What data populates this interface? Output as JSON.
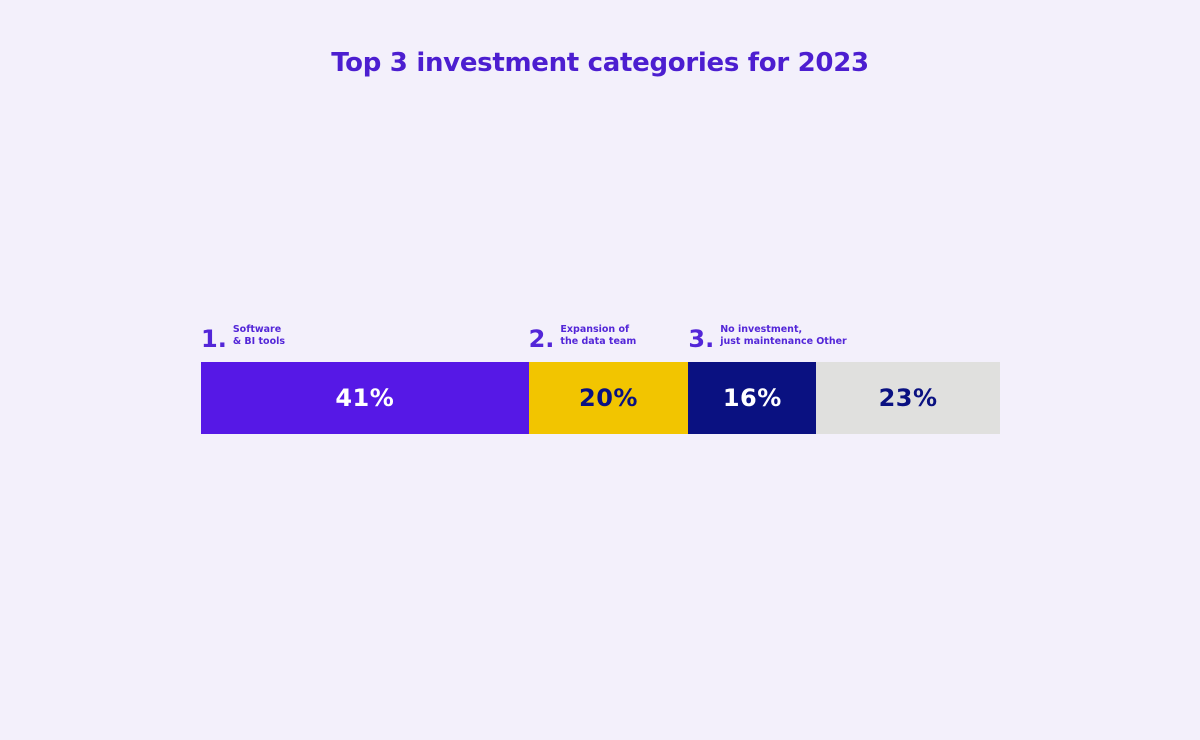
{
  "colors": {
    "background": "#f3f0fb",
    "title_text": "#4c1ed0",
    "label_text": "#5326d8"
  },
  "chart_data": {
    "type": "bar",
    "variant": "horizontal-stacked-100-percent",
    "title": "Top 3 investment categories for 2023",
    "unit": "%",
    "categories": [
      "Software & BI tools",
      "Expansion of the data team",
      "No investment, just maintenance",
      "Other"
    ],
    "values": [
      41,
      20,
      16,
      23
    ],
    "segments": [
      {
        "rank": "1.",
        "line1": "Software",
        "line2": "& BI tools",
        "value": 41,
        "value_label": "41%",
        "color": "#5618e6",
        "text_color": "#ffffff"
      },
      {
        "rank": "2.",
        "line1": "Expansion of",
        "line2": "the data team",
        "value": 20,
        "value_label": "20%",
        "color": "#f2c500",
        "text_color": "#0a1181"
      },
      {
        "rank": "3.",
        "line1": "No investment,",
        "line2": "just maintenance",
        "value": 16,
        "value_label": "16%",
        "color": "#0a1181",
        "text_color": "#ffffff"
      },
      {
        "rank": "",
        "line1": "",
        "line2": "Other",
        "value": 23,
        "value_label": "23%",
        "color": "#e0e0de",
        "text_color": "#0a1181"
      }
    ],
    "legend": "none",
    "axes": "none",
    "grid": false
  }
}
